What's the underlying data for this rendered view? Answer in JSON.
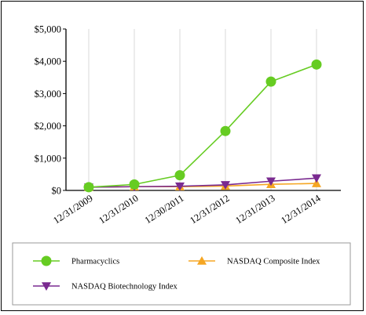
{
  "chart_data": {
    "type": "line",
    "categories": [
      "12/31/2009",
      "12/31/2010",
      "12/30/2011",
      "12/31/2012",
      "12/31/2013",
      "12/31/2014"
    ],
    "ylim": [
      0,
      5000
    ],
    "yticks": [
      "$0",
      "$1,000",
      "$2,000",
      "$3,000",
      "$4,000",
      "$5,000"
    ],
    "ytick_values": [
      0,
      1000,
      2000,
      3000,
      4000,
      5000
    ],
    "grid": "vertical",
    "legend_position": "bottom",
    "series": [
      {
        "name": "Pharmacyclics",
        "values": [
          100,
          185,
          470,
          1840,
          3370,
          3900
        ],
        "color": "#66cc22",
        "marker": "circle"
      },
      {
        "name": "NASDAQ Composite Index",
        "values": [
          100,
          116,
          115,
          135,
          189,
          216
        ],
        "color": "#f5a623",
        "marker": "triangle-up"
      },
      {
        "name": "NASDAQ Biotechnology Index",
        "values": [
          100,
          115,
          130,
          172,
          285,
          380
        ],
        "color": "#7a2a90",
        "marker": "triangle-down"
      }
    ]
  }
}
